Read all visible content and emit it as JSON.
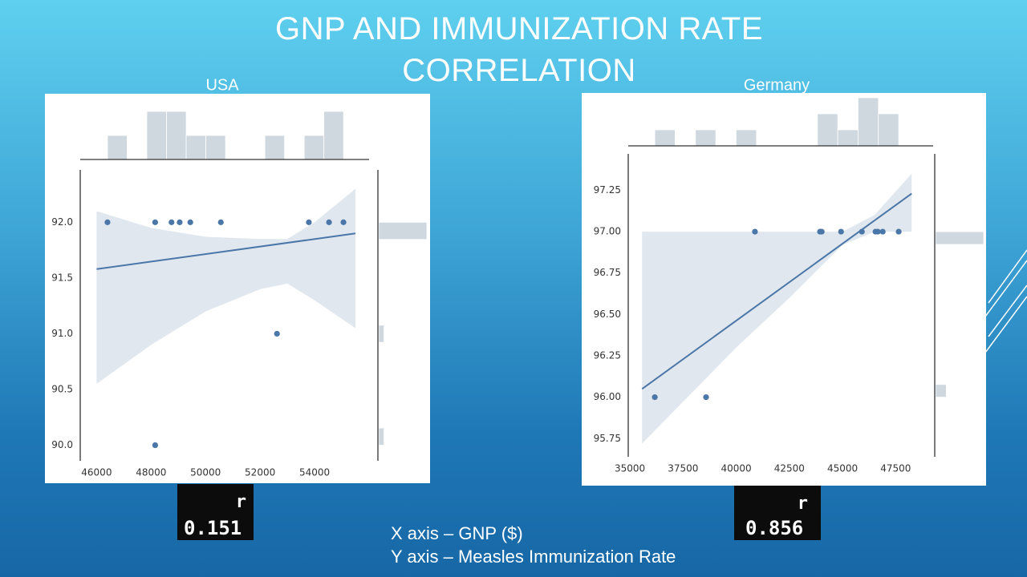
{
  "title": "GNP AND IMMUNIZATION RATE CORRELATION",
  "notes": [
    "X axis – GNP ($)",
    "Y axis – Measles Immunization Rate"
  ],
  "chart_data": [
    {
      "type": "scatter",
      "title": "USA",
      "color": "#4a76a8",
      "band_color": "#dde4ec",
      "hist_color": "#cfd7df",
      "x": [
        46400,
        48150,
        48750,
        49050,
        49440,
        50560,
        53790,
        54530,
        55060,
        52620,
        48150
      ],
      "y": [
        92,
        92,
        92,
        92,
        92,
        92,
        92,
        92,
        92,
        91,
        90
      ],
      "xlim": [
        45400,
        56000
      ],
      "ylim": [
        89.86,
        92.47
      ],
      "xticks": [
        46000,
        48000,
        50000,
        52000,
        54000
      ],
      "yticks": [
        {
          "value": 90,
          "label": "90.0"
        },
        {
          "value": 90.5,
          "label": "90.5"
        },
        {
          "value": 91,
          "label": "91.0"
        },
        {
          "value": 91.5,
          "label": "91.5"
        },
        {
          "value": 92,
          "label": "92.0"
        }
      ],
      "trendline": {
        "x": [
          46000,
          55500
        ],
        "y": [
          91.58,
          91.9
        ]
      },
      "ci_band": {
        "x": [
          46000,
          48000,
          50000,
          52000,
          53000,
          54000,
          55500
        ],
        "upper": [
          92.1,
          91.95,
          91.87,
          91.85,
          91.85,
          92.0,
          92.3
        ],
        "lower": [
          90.55,
          90.9,
          91.2,
          91.4,
          91.45,
          91.3,
          91.05
        ]
      },
      "top_hist": {
        "bins": [
          46400,
          47122,
          47844,
          48566,
          49288,
          50010,
          50732,
          51454,
          52176,
          52898,
          53620,
          54342,
          55064
        ],
        "counts": [
          1,
          0,
          2,
          2,
          1,
          1,
          0,
          0,
          1,
          0,
          1,
          2
        ]
      },
      "right_hist": {
        "bins": [
          90,
          90.154,
          90.308,
          90.462,
          90.615,
          90.769,
          90.923,
          91.077,
          91.231,
          91.385,
          91.538,
          91.692,
          91.846,
          92
        ],
        "counts": [
          1,
          0,
          0,
          0,
          0,
          0,
          1,
          0,
          0,
          0,
          0,
          0,
          9
        ]
      },
      "r_label": "r",
      "r_value": 0.151
    },
    {
      "type": "scatter",
      "title": "Germany",
      "color": "#4a76a8",
      "band_color": "#dde4ec",
      "hist_color": "#cfd7df",
      "x": [
        36170,
        38580,
        40880,
        43940,
        44020,
        44930,
        45910,
        46550,
        46660,
        46890,
        47640
      ],
      "y": [
        96,
        96,
        97,
        97,
        97,
        97,
        97,
        97,
        97,
        97,
        97
      ],
      "xlim": [
        34920,
        49260
      ],
      "ylim": [
        95.64,
        97.47
      ],
      "xticks": [
        35000,
        37500,
        40000,
        42500,
        45000,
        47500
      ],
      "yticks": [
        95.75,
        {
          "value": 96,
          "label": "96.00"
        },
        96.25,
        {
          "value": 96.5,
          "label": "96.50"
        },
        96.75,
        {
          "value": 97,
          "label": "97.00"
        },
        97.25
      ],
      "trendline": {
        "x": [
          35570,
          48250
        ],
        "y": [
          96.05,
          97.23
        ]
      },
      "ci_band": {
        "x": [
          35570,
          40000,
          42500,
          45000,
          46500,
          48250
        ],
        "upper": [
          97,
          97,
          97,
          97,
          97.1,
          97.35
        ],
        "lower": [
          95.72,
          96.3,
          96.6,
          96.92,
          97,
          97
        ]
      },
      "top_hist": {
        "bins": [
          36170,
          37126,
          38082,
          39038,
          39994,
          40950,
          41906,
          42862,
          43818,
          44774,
          45730,
          46686,
          47642
        ],
        "counts": [
          1,
          0,
          1,
          0,
          1,
          0,
          0,
          0,
          2,
          1,
          3,
          2
        ]
      },
      "right_hist": {
        "bins": [
          96,
          96.077,
          96.154,
          96.231,
          96.308,
          96.385,
          96.462,
          96.538,
          96.615,
          96.692,
          96.769,
          96.846,
          96.923,
          97
        ],
        "counts": [
          2,
          0,
          0,
          0,
          0,
          0,
          0,
          0,
          0,
          0,
          0,
          0,
          9
        ]
      },
      "r_label": "r",
      "r_value": 0.856
    }
  ]
}
